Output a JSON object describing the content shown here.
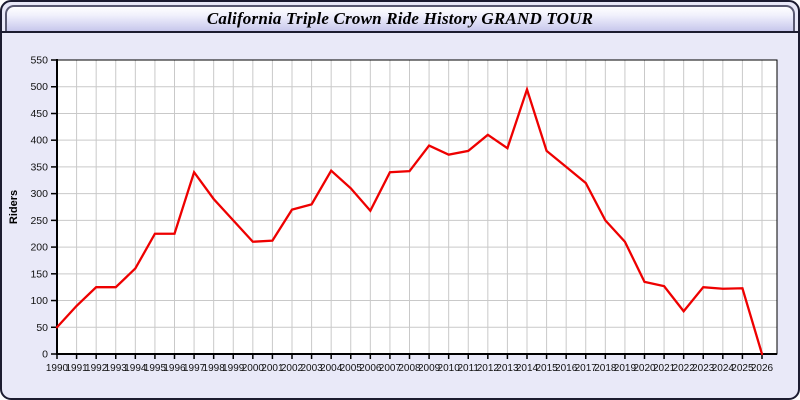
{
  "panel": {
    "title": "California Triple Crown Ride History GRAND TOUR"
  },
  "chart_data": {
    "type": "line",
    "title": "California Triple Crown Ride History GRAND TOUR",
    "xlabel": "",
    "ylabel": "Riders",
    "x": [
      1990,
      1991,
      1992,
      1993,
      1994,
      1995,
      1996,
      1997,
      1998,
      1999,
      2000,
      2001,
      2002,
      2003,
      2004,
      2005,
      2006,
      2007,
      2008,
      2009,
      2010,
      2011,
      2012,
      2013,
      2014,
      2015,
      2016,
      2017,
      2018,
      2019,
      2020,
      2021,
      2022,
      2023,
      2024,
      2025,
      2026
    ],
    "series": [
      {
        "name": "Riders",
        "values": [
          50,
          90,
          125,
          125,
          160,
          225,
          225,
          340,
          290,
          250,
          210,
          212,
          270,
          280,
          343,
          310,
          268,
          340,
          342,
          390,
          373,
          380,
          410,
          385,
          495,
          380,
          350,
          320,
          250,
          210,
          135,
          127,
          80,
          125,
          122,
          123,
          0
        ]
      }
    ],
    "ylim": [
      0,
      550
    ],
    "ytick_step": 50,
    "grid": true,
    "legend_position": "none",
    "line_color": "#ee0000",
    "plot_bg": "#ffffff",
    "grid_color": "#c9c9c9",
    "axis_color": "#000000",
    "tick_label_color": "#111111",
    "page_bg": "#e9e9f8"
  }
}
